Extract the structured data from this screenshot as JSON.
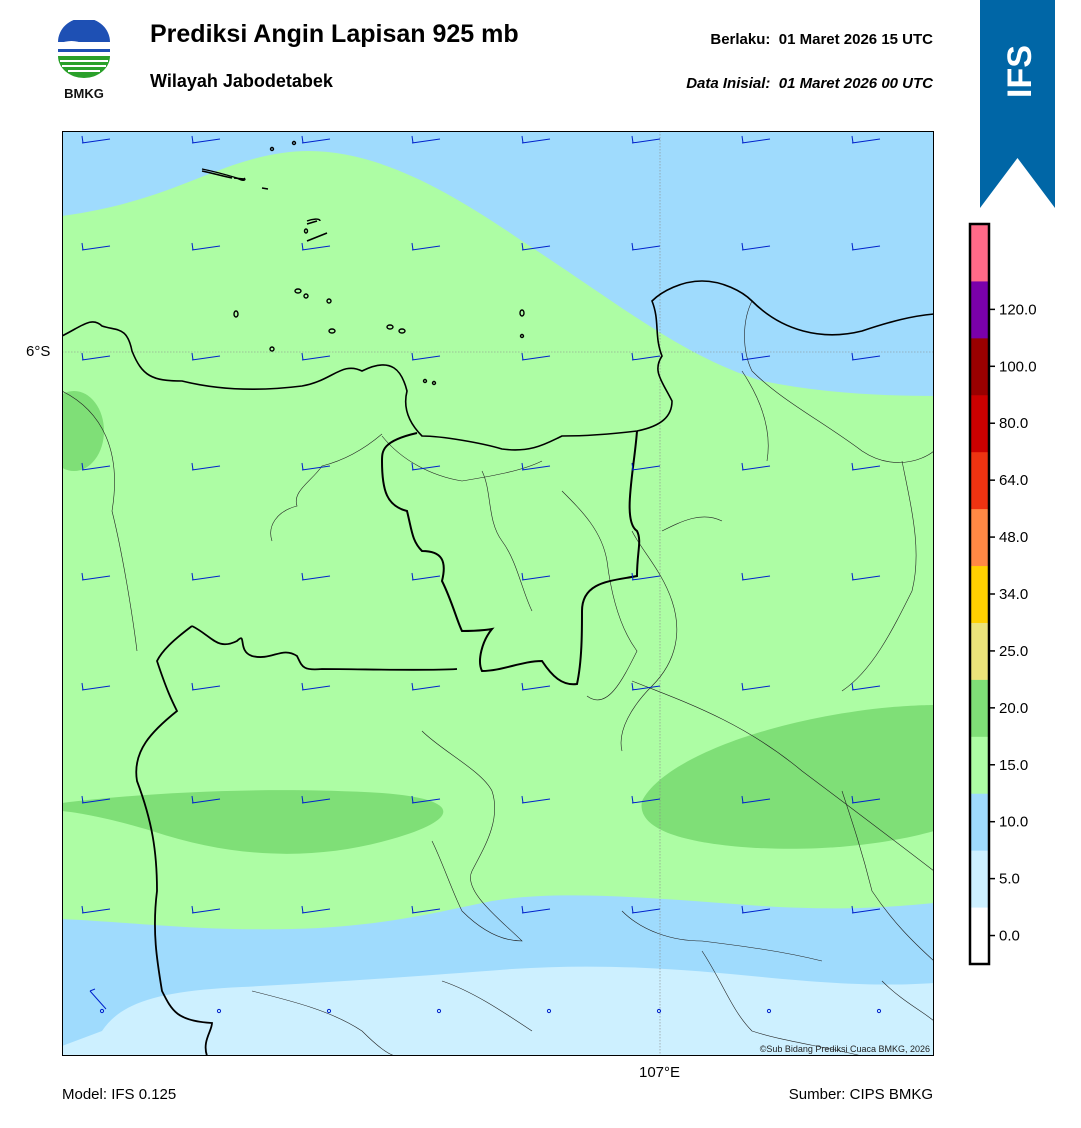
{
  "header": {
    "title": "Prediksi Angin Lapisan 925 mb",
    "subtitle": "Wilayah Jabodetabek",
    "valid_label": "Berlaku:",
    "valid_value": "01 Maret 2026 15 UTC",
    "init_label": "Data Inisial:",
    "init_value": "01 Maret 2026 00 UTC"
  },
  "logo": {
    "text": "BMKG"
  },
  "banner": {
    "text": "IFS",
    "color": "#0066a6"
  },
  "map": {
    "lat_label": "6°S",
    "lon_label": "107°E",
    "copyright": "©Sub Bidang Prediksi Cuaca BMKG, 2026",
    "colors": {
      "band_0_5": "#cdf0ff",
      "band_5_10": "#9fdbfd",
      "band_10_15": "#adfda4",
      "band_15_20": "#7fdf77",
      "barb": "#0022cc"
    }
  },
  "colorbar": {
    "ticks": [
      "0.0",
      "5.0",
      "10.0",
      "15.0",
      "20.0",
      "25.0",
      "34.0",
      "48.0",
      "64.0",
      "80.0",
      "100.0",
      "120.0"
    ],
    "colors": [
      "#ffffff",
      "#cdf0ff",
      "#9fdbfd",
      "#adfda4",
      "#7fdf77",
      "#ece47a",
      "#ffd000",
      "#ff8844",
      "#ee3311",
      "#cc0000",
      "#990000",
      "#7a00aa",
      "#ff6a88"
    ]
  },
  "footer": {
    "model": "Model: IFS 0.125",
    "source": "Sumber: CIPS BMKG"
  }
}
